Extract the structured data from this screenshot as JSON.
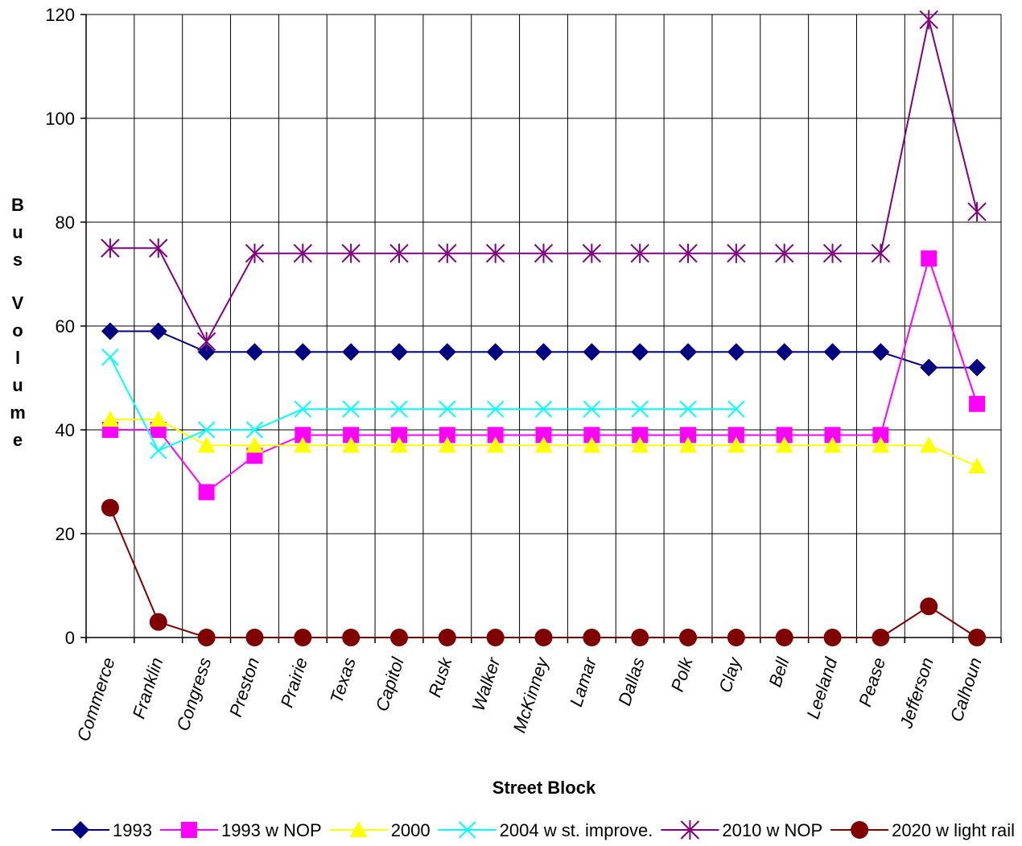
{
  "chart_data": {
    "type": "line",
    "title": "",
    "xlabel": "Street Block",
    "ylabel": "Bus Volume",
    "ylim": [
      0,
      120
    ],
    "yticks": [
      "0",
      "20",
      "40",
      "60",
      "80",
      "100",
      "120"
    ],
    "grid": true,
    "legend_position": "bottom",
    "categories": [
      "Commerce",
      "Franklin",
      "Congress",
      "Preston",
      "Prairie",
      "Texas",
      "Capitol",
      "Rusk",
      "Walker",
      "McKinney",
      "Lamar",
      "Dallas",
      "Polk",
      "Clay",
      "Bell",
      "Leeland",
      "Pease",
      "Jefferson",
      "Calhoun"
    ],
    "series": [
      {
        "name": "1993",
        "color": "#000080",
        "marker": "diamond",
        "values": [
          59,
          59,
          55,
          55,
          55,
          55,
          55,
          55,
          55,
          55,
          55,
          55,
          55,
          55,
          55,
          55,
          55,
          52,
          52
        ]
      },
      {
        "name": "1993 w NOP",
        "color": "#ff00ff",
        "marker": "square",
        "values": [
          40,
          40,
          28,
          35,
          39,
          39,
          39,
          39,
          39,
          39,
          39,
          39,
          39,
          39,
          39,
          39,
          39,
          73,
          45
        ]
      },
      {
        "name": "2000",
        "color": "#ffff00",
        "marker": "triangle",
        "values": [
          42,
          42,
          37,
          37,
          37,
          37,
          37,
          37,
          37,
          37,
          37,
          37,
          37,
          37,
          37,
          37,
          37,
          37,
          33
        ]
      },
      {
        "name": "2004 w st. improve.",
        "color": "#00ffff",
        "marker": "x",
        "values": [
          54,
          36,
          40,
          40,
          44,
          44,
          44,
          44,
          44,
          44,
          44,
          44,
          44,
          44,
          null,
          null,
          null,
          null,
          null
        ]
      },
      {
        "name": "2010 w NOP",
        "color": "#800080",
        "marker": "asterisk",
        "values": [
          75,
          75,
          57,
          74,
          74,
          74,
          74,
          74,
          74,
          74,
          74,
          74,
          74,
          74,
          74,
          74,
          74,
          119,
          82
        ]
      },
      {
        "name": "2020 w light rail",
        "color": "#800000",
        "marker": "circle",
        "values": [
          25,
          3,
          0,
          0,
          0,
          0,
          0,
          0,
          0,
          0,
          0,
          0,
          0,
          0,
          0,
          0,
          0,
          6,
          0
        ]
      }
    ]
  }
}
